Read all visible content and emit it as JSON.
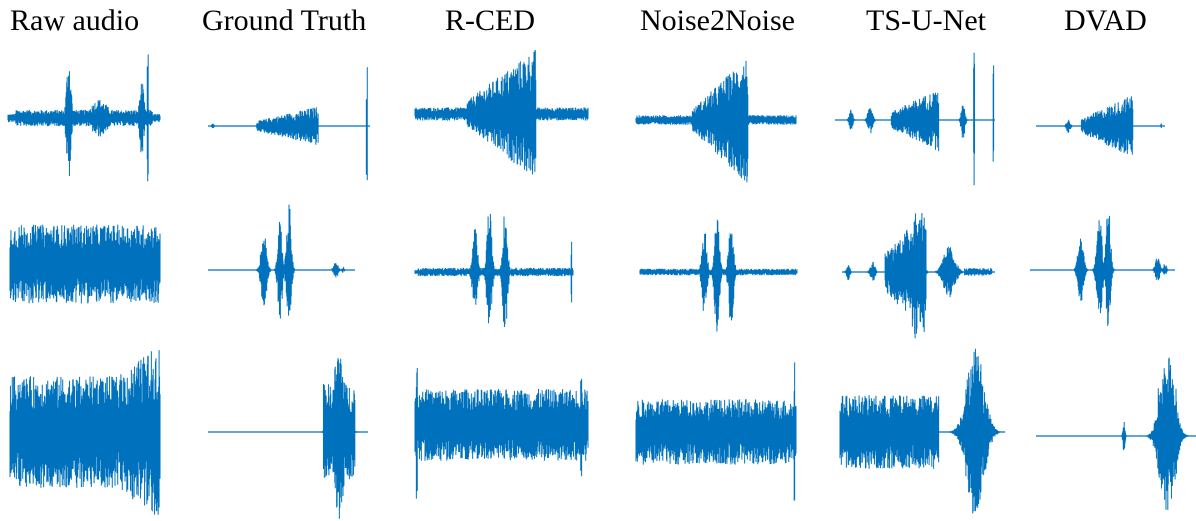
{
  "columns": [
    {
      "title": "Raw audio"
    },
    {
      "title": "Ground Truth"
    },
    {
      "title": "R-CED"
    },
    {
      "title": "Noise2Noise"
    },
    {
      "title": "TS-U-Net"
    },
    {
      "title": "DVAD"
    }
  ],
  "waveform_color": "#0072BD",
  "background_color": "#ffffff"
}
